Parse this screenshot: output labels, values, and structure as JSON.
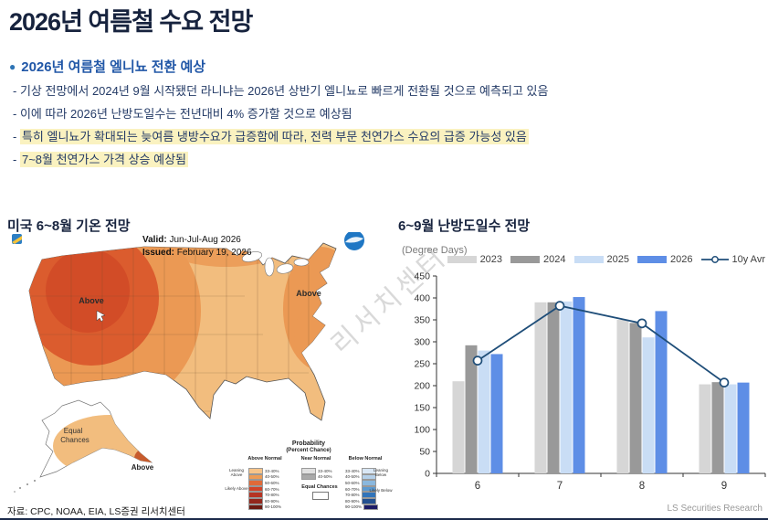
{
  "page": {
    "title": "2026년 여름철 수요 전망",
    "source_note": "자료: CPC, NOAA, EIA, LS증권 리서치센터",
    "footer_right": "LS Securities Research",
    "watermark": "리서치센터",
    "accent_navy": "#1b2a4a",
    "highlight_yellow": "#faf2c0"
  },
  "summary": {
    "heading_icon": "●",
    "heading": "2026년 여름철 엘니뇨 전환 예상",
    "dash": "-",
    "bullets": [
      {
        "text": "기상 전망에서 2024년 9월 시작됐던 라니냐는 2026년 상반기 엘니뇨로 빠르게 전환될 것으로 예측되고 있음",
        "highlight": false
      },
      {
        "text": "이에 따라 2026년 난방도일수는 전년대비 4% 증가할 것으로 예상됨",
        "highlight": false
      },
      {
        "text": "특히 엘니뇨가 확대되는 늦여름 냉방수요가 급증함에 따라, 전력 부문 천연가스 수요의 급증 가능성 있음",
        "highlight": true
      },
      {
        "text": "7~8월 천연가스 가격 상승 예상됨",
        "highlight": true
      }
    ]
  },
  "map_panel": {
    "title": "미국 6~8월 기온 전망",
    "valid_label": "Valid:",
    "valid_value": "Jun-Jul-Aug 2026",
    "issued_label": "Issued:",
    "issued_value": "February 19, 2026",
    "labels": {
      "nw": "Above",
      "ne": "Above",
      "ak_equal_1": "Equal",
      "ak_equal_2": "Chances",
      "ak_above": "Above"
    },
    "legend": {
      "title": "Probability",
      "subtitle": "(Percent Chance)",
      "col_above": "Above Normal",
      "col_near": "Near Normal",
      "col_below": "Below Normal",
      "rows": [
        "33-40%",
        "40-50%",
        "50-60%",
        "60-70%",
        "70-80%",
        "80-90%",
        "90-100%"
      ],
      "above_colors": [
        "#f7c489",
        "#ee9c55",
        "#e06a38",
        "#d14327",
        "#b63423",
        "#93271c",
        "#6d1a12"
      ],
      "near_rows": [
        "33-40%",
        "40-50%"
      ],
      "near_colors": [
        "#e0e0e0",
        "#a9a9a9"
      ],
      "below_colors": [
        "#d9e7f5",
        "#b4d0ea",
        "#8ab8de",
        "#5c9ad1",
        "#3174ba",
        "#23508f",
        "#1c1b66"
      ],
      "equal_label": "Equal Chances",
      "side_labels": [
        "Leaning Above",
        "Likely Above",
        "Leaning Below",
        "Likely Below"
      ]
    }
  },
  "chart_panel": {
    "title": "6~9월 난방도일수 전망",
    "unit": "(Degree Days)"
  },
  "chart_data": {
    "type": "bar",
    "title": "6~9월 난방도일수 전망",
    "ylabel": "(Degree Days)",
    "categories": [
      "6",
      "7",
      "8",
      "9"
    ],
    "series": [
      {
        "name": "2023",
        "type": "bar",
        "color": "#d6d6d6",
        "values": [
          210,
          390,
          350,
          203
        ]
      },
      {
        "name": "2024",
        "type": "bar",
        "color": "#999999",
        "values": [
          292,
          390,
          343,
          208
        ]
      },
      {
        "name": "2025",
        "type": "bar",
        "color": "#c9ddf5",
        "values": [
          280,
          392,
          310,
          203
        ]
      },
      {
        "name": "2026",
        "type": "bar",
        "color": "#5e8ee6",
        "values": [
          272,
          402,
          370,
          207
        ]
      },
      {
        "name": "10y Avr",
        "type": "line",
        "color": "#1f4e79",
        "values": [
          257,
          382,
          342,
          207
        ]
      }
    ],
    "ylim": [
      0,
      450
    ],
    "ytick_step": 50,
    "grid": false,
    "legend_position": "top-right"
  }
}
